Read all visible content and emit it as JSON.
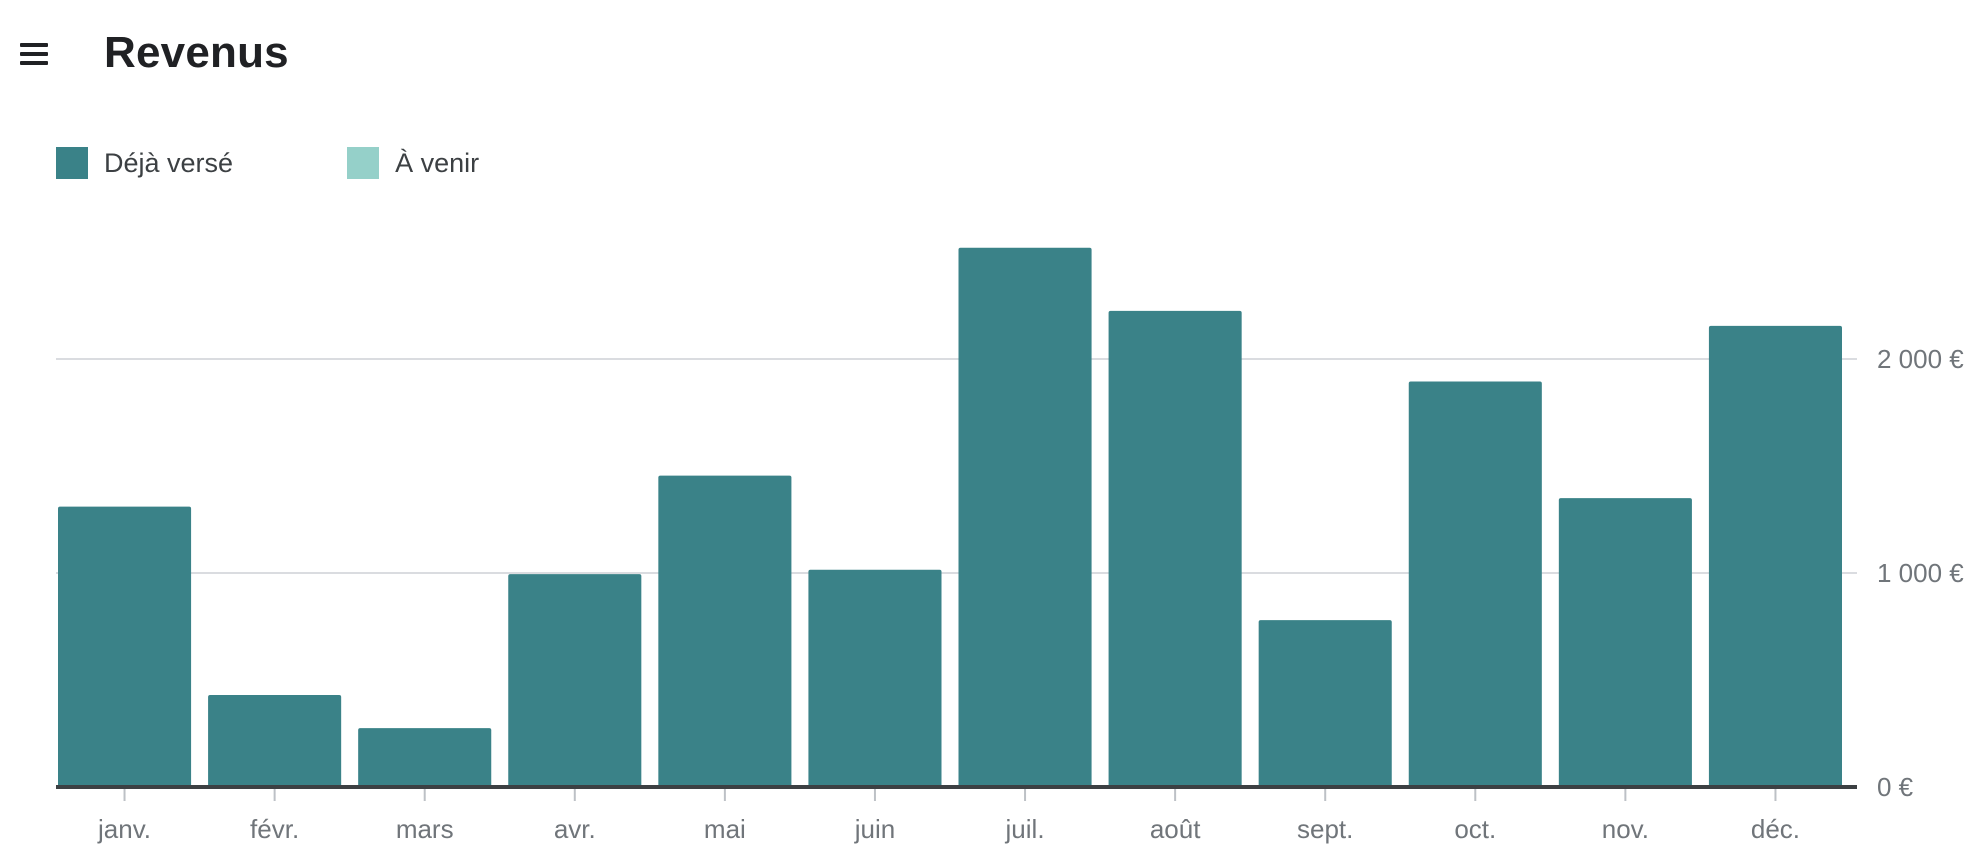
{
  "header": {
    "title": "Revenus",
    "menu_icon": "menu-icon"
  },
  "chart_data": {
    "type": "bar",
    "categories": [
      "janv.",
      "févr.",
      "mars",
      "avr.",
      "mai",
      "juin",
      "juil.",
      "août",
      "sept.",
      "oct.",
      "nov.",
      "déc."
    ],
    "series": [
      {
        "name": "Déjà versé",
        "color": "#3a8288",
        "values": [
          1310,
          430,
          275,
          995,
          1455,
          1015,
          2520,
          2225,
          780,
          1895,
          1350,
          2155
        ]
      },
      {
        "name": "À venir",
        "color": "#95d0c9",
        "values": [
          0,
          0,
          0,
          0,
          0,
          0,
          0,
          0,
          0,
          0,
          0,
          0
        ]
      }
    ],
    "y_ticks": [
      {
        "value": 0,
        "label": "0 €"
      },
      {
        "value": 1000,
        "label": "1 000 €"
      },
      {
        "value": 2000,
        "label": "2 000 €"
      }
    ],
    "ylim": [
      0,
      2700
    ],
    "grid": true,
    "legend_position": "top-left",
    "y_axis_position": "right"
  }
}
